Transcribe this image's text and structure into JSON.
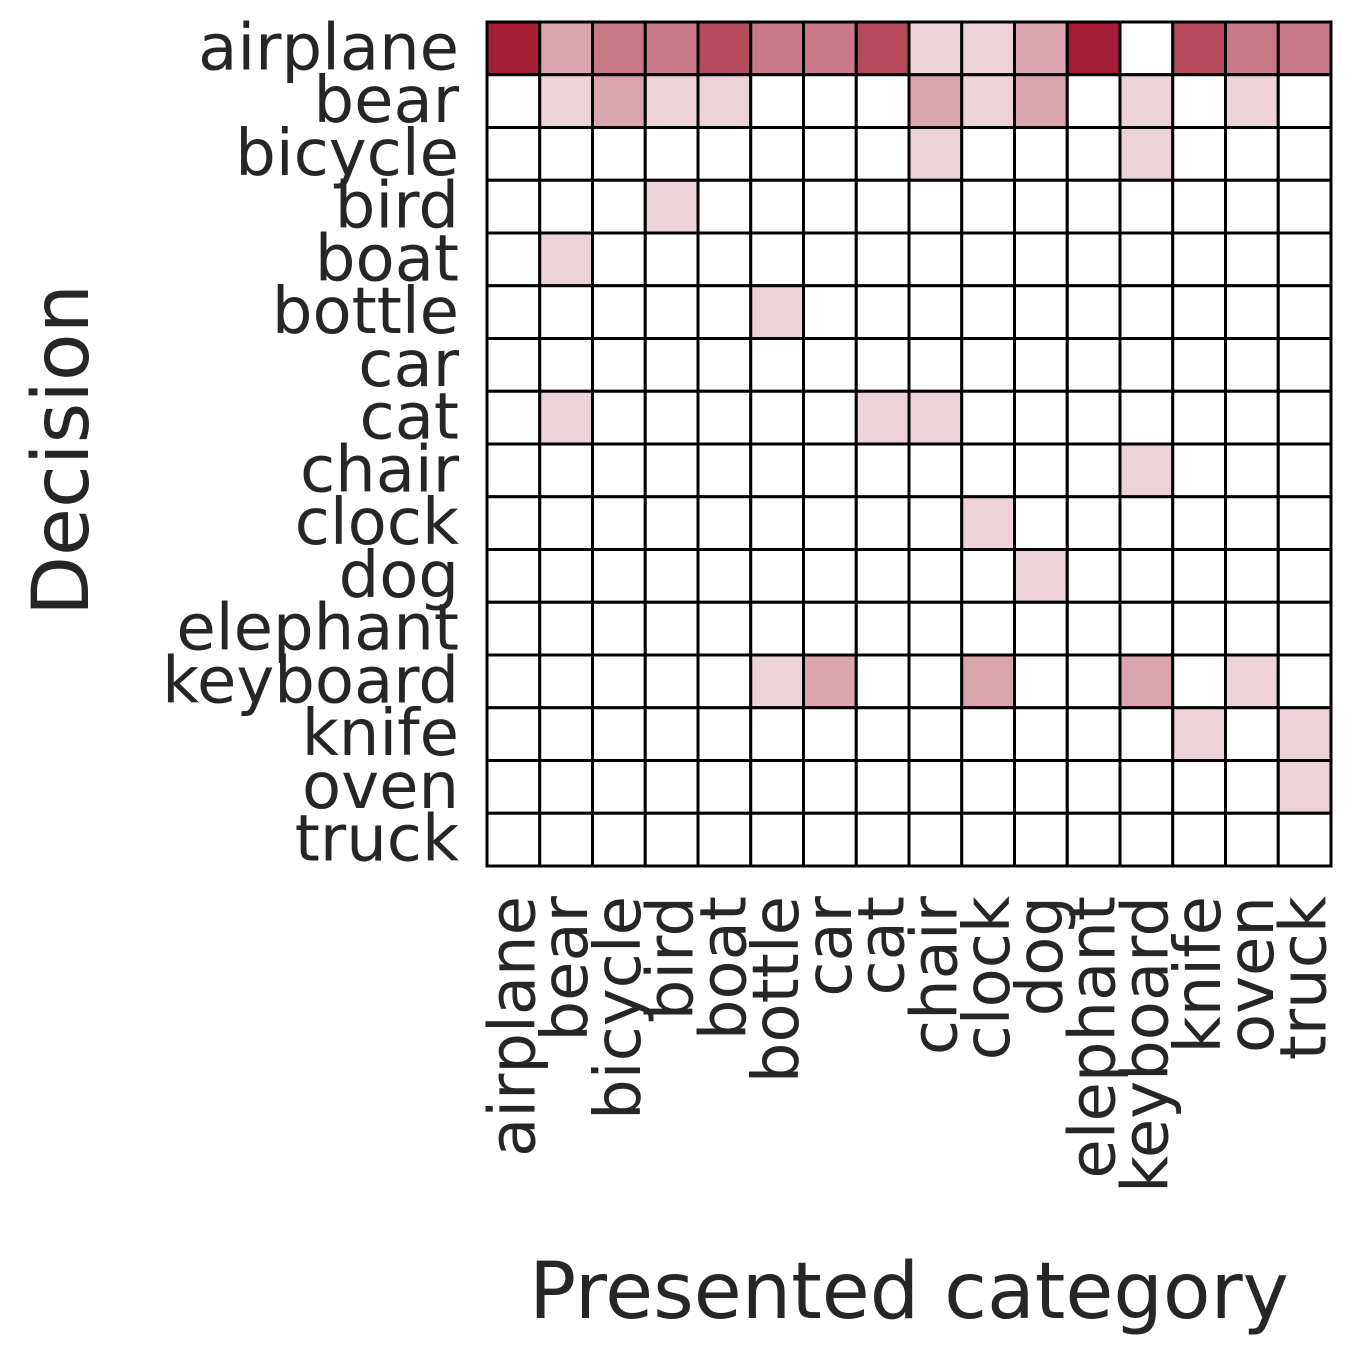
{
  "chart_data": {
    "type": "heatmap",
    "xlabel": "Presented category",
    "ylabel": "Decision",
    "x_categories": [
      "airplane",
      "bear",
      "bicycle",
      "bird",
      "boat",
      "bottle",
      "car",
      "cat",
      "chair",
      "clock",
      "dog",
      "elephant",
      "keyboard",
      "knife",
      "oven",
      "truck"
    ],
    "y_categories": [
      "airplane",
      "bear",
      "bicycle",
      "bird",
      "boat",
      "bottle",
      "car",
      "cat",
      "chair",
      "clock",
      "dog",
      "elephant",
      "keyboard",
      "knife",
      "oven",
      "truck"
    ],
    "values": [
      [
        1.0,
        0.4,
        0.6,
        0.6,
        0.8,
        0.6,
        0.6,
        0.8,
        0.2,
        0.2,
        0.4,
        1.0,
        0.0,
        0.8,
        0.6,
        0.6
      ],
      [
        0.0,
        0.2,
        0.4,
        0.2,
        0.2,
        0.0,
        0.0,
        0.0,
        0.4,
        0.2,
        0.4,
        0.0,
        0.2,
        0.0,
        0.2,
        0.0
      ],
      [
        0.0,
        0.0,
        0.0,
        0.0,
        0.0,
        0.0,
        0.0,
        0.0,
        0.2,
        0.0,
        0.0,
        0.0,
        0.2,
        0.0,
        0.0,
        0.0
      ],
      [
        0.0,
        0.0,
        0.0,
        0.2,
        0.0,
        0.0,
        0.0,
        0.0,
        0.0,
        0.0,
        0.0,
        0.0,
        0.0,
        0.0,
        0.0,
        0.0
      ],
      [
        0.0,
        0.2,
        0.0,
        0.0,
        0.0,
        0.0,
        0.0,
        0.0,
        0.0,
        0.0,
        0.0,
        0.0,
        0.0,
        0.0,
        0.0,
        0.0
      ],
      [
        0.0,
        0.0,
        0.0,
        0.0,
        0.0,
        0.2,
        0.0,
        0.0,
        0.0,
        0.0,
        0.0,
        0.0,
        0.0,
        0.0,
        0.0,
        0.0
      ],
      [
        0.0,
        0.0,
        0.0,
        0.0,
        0.0,
        0.0,
        0.0,
        0.0,
        0.0,
        0.0,
        0.0,
        0.0,
        0.0,
        0.0,
        0.0,
        0.0
      ],
      [
        0.0,
        0.2,
        0.0,
        0.0,
        0.0,
        0.0,
        0.0,
        0.2,
        0.2,
        0.0,
        0.0,
        0.0,
        0.0,
        0.0,
        0.0,
        0.0
      ],
      [
        0.0,
        0.0,
        0.0,
        0.0,
        0.0,
        0.0,
        0.0,
        0.0,
        0.0,
        0.0,
        0.0,
        0.0,
        0.2,
        0.0,
        0.0,
        0.0
      ],
      [
        0.0,
        0.0,
        0.0,
        0.0,
        0.0,
        0.0,
        0.0,
        0.0,
        0.0,
        0.2,
        0.0,
        0.0,
        0.0,
        0.0,
        0.0,
        0.0
      ],
      [
        0.0,
        0.0,
        0.0,
        0.0,
        0.0,
        0.0,
        0.0,
        0.0,
        0.0,
        0.0,
        0.2,
        0.0,
        0.0,
        0.0,
        0.0,
        0.0
      ],
      [
        0.0,
        0.0,
        0.0,
        0.0,
        0.0,
        0.0,
        0.0,
        0.0,
        0.0,
        0.0,
        0.0,
        0.0,
        0.0,
        0.0,
        0.0,
        0.0
      ],
      [
        0.0,
        0.0,
        0.0,
        0.0,
        0.0,
        0.2,
        0.4,
        0.0,
        0.0,
        0.4,
        0.0,
        0.0,
        0.4,
        0.0,
        0.2,
        0.0
      ],
      [
        0.0,
        0.0,
        0.0,
        0.0,
        0.0,
        0.0,
        0.0,
        0.0,
        0.0,
        0.0,
        0.0,
        0.0,
        0.0,
        0.2,
        0.0,
        0.2
      ],
      [
        0.0,
        0.0,
        0.0,
        0.0,
        0.0,
        0.0,
        0.0,
        0.0,
        0.0,
        0.0,
        0.0,
        0.0,
        0.0,
        0.0,
        0.0,
        0.2
      ],
      [
        0.0,
        0.0,
        0.0,
        0.0,
        0.0,
        0.0,
        0.0,
        0.0,
        0.0,
        0.0,
        0.0,
        0.0,
        0.0,
        0.0,
        0.0,
        0.0
      ]
    ],
    "value_range": [
      0,
      1
    ],
    "colormap": {
      "low": "#ffffff",
      "high": "#a41e36"
    },
    "cell_border_color": "#000000",
    "grid": true,
    "legend": "none"
  }
}
